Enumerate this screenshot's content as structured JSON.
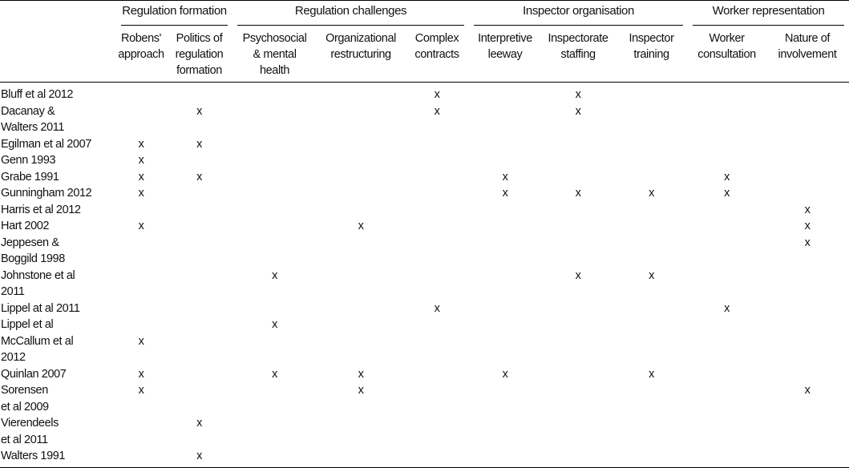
{
  "groups": [
    {
      "label": "Regulation formation",
      "span": 2
    },
    {
      "label": "Regulation challenges",
      "span": 3
    },
    {
      "label": "Inspector organisation",
      "span": 3
    },
    {
      "label": "Worker representation",
      "span": 2
    }
  ],
  "columns": [
    [
      "Robens'",
      "approach"
    ],
    [
      "Politics of",
      "regulation",
      "formation"
    ],
    [
      "Psychosocial",
      "& mental",
      "health"
    ],
    [
      "Organizational",
      "restructuring"
    ],
    [
      "Complex",
      "contracts"
    ],
    [
      "Interpretive",
      "leeway"
    ],
    [
      "Inspectorate",
      "staffing"
    ],
    [
      "Inspector",
      "training"
    ],
    [
      "Worker",
      "consultation"
    ],
    [
      "Nature of",
      "involvement"
    ]
  ],
  "mark": "x",
  "rows": [
    {
      "study": [
        "Bluff et al 2012"
      ],
      "marks": [
        4,
        6
      ]
    },
    {
      "study": [
        "Dacanay &",
        "Walters 2011"
      ],
      "marks": [
        1,
        4,
        6
      ]
    },
    {
      "study": [
        "Egilman et al 2007"
      ],
      "marks": [
        0,
        1
      ]
    },
    {
      "study": [
        "Genn 1993"
      ],
      "marks": [
        0
      ]
    },
    {
      "study": [
        "Grabe 1991"
      ],
      "marks": [
        0,
        1,
        5,
        8
      ]
    },
    {
      "study": [
        "Gunningham 2012"
      ],
      "marks": [
        0,
        5,
        6,
        7,
        8
      ]
    },
    {
      "study": [
        "Harris et al 2012"
      ],
      "marks": [
        9
      ]
    },
    {
      "study": [
        "Hart 2002"
      ],
      "marks": [
        0,
        3,
        9
      ]
    },
    {
      "study": [
        "Jeppesen &",
        "Boggild 1998"
      ],
      "marks": [
        9
      ]
    },
    {
      "study": [
        "Johnstone et al",
        "2011"
      ],
      "marks": [
        2,
        6,
        7
      ]
    },
    {
      "study": [
        "Lippel at al 2011"
      ],
      "marks": [
        4,
        8
      ]
    },
    {
      "study": [
        "Lippel et al"
      ],
      "marks": [
        2
      ]
    },
    {
      "study": [
        "McCallum et al",
        "2012"
      ],
      "marks": [
        0
      ]
    },
    {
      "study": [
        "Quinlan 2007"
      ],
      "marks": [
        0,
        2,
        3,
        5,
        7
      ]
    },
    {
      "study": [
        "Sorensen",
        "et al 2009"
      ],
      "marks": [
        0,
        3,
        9
      ]
    },
    {
      "study": [
        "Vierendeels",
        "et al 2011"
      ],
      "marks": [
        1
      ]
    },
    {
      "study": [
        "Walters 1991"
      ],
      "marks": [
        1
      ]
    }
  ]
}
